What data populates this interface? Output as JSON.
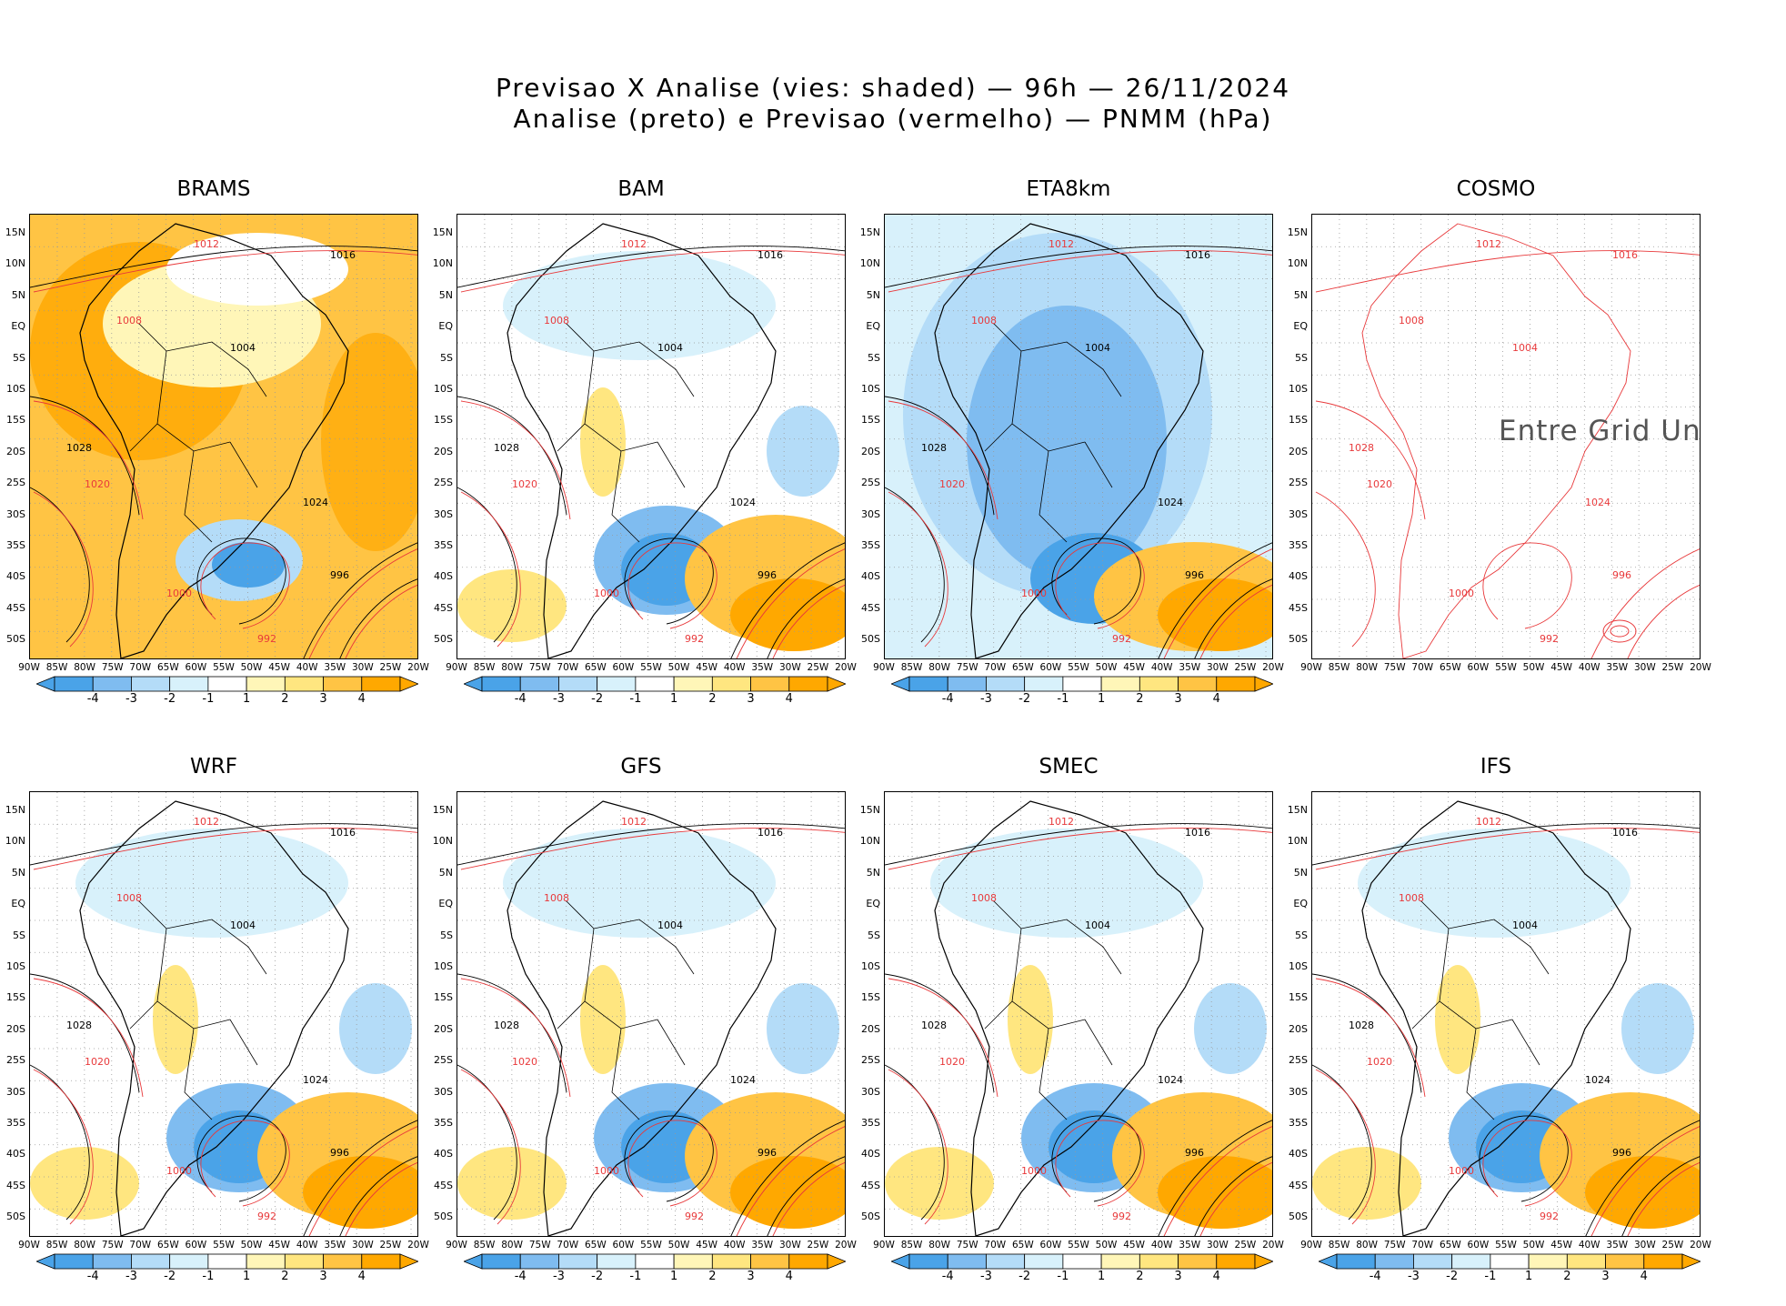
{
  "title_line1": "Previsao X Analise (vies: shaded) — 96h — 26/11/2024",
  "title_line2": "Analise (preto) e Previsao (vermelho) — PNMM (hPa)",
  "lat_labels": [
    "15N",
    "10N",
    "5N",
    "EQ",
    "5S",
    "10S",
    "15S",
    "20S",
    "25S",
    "30S",
    "35S",
    "40S",
    "45S",
    "50S"
  ],
  "lon_labels": [
    "90W",
    "85W",
    "80W",
    "75W",
    "70W",
    "65W",
    "60W",
    "55W",
    "50W",
    "45W",
    "40W",
    "35W",
    "30W",
    "25W",
    "20W"
  ],
  "colorbar_labels": [
    "-4",
    "-3",
    "-2",
    "-1",
    "1",
    "2",
    "3",
    "4"
  ],
  "colors": {
    "neg4": "#4aa3e8",
    "neg3": "#7fbcf0",
    "neg2": "#b4dcf8",
    "neg1": "#d8f1fb",
    "pos1": "#fff6b8",
    "pos2": "#ffe680",
    "pos3": "#ffc444",
    "pos4": "#ffa800",
    "analysis": "#000000",
    "forecast": "#e8393b"
  },
  "panels": [
    {
      "name": "BRAMS",
      "bias": "warm"
    },
    {
      "name": "BAM",
      "bias": "mixed"
    },
    {
      "name": "ETA8km",
      "bias": "cold"
    },
    {
      "name": "COSMO",
      "bias": "none",
      "missing_text": "Entre Grid Und"
    },
    {
      "name": "WRF",
      "bias": "mixed"
    },
    {
      "name": "GFS",
      "bias": "mixed"
    },
    {
      "name": "SMEC",
      "bias": "mixed"
    },
    {
      "name": "IFS",
      "bias": "mixed"
    }
  ],
  "isobar_labels": [
    "1012",
    "1016",
    "1008",
    "1004",
    "1020",
    "1024",
    "1000",
    "996",
    "992",
    "1028"
  ]
}
